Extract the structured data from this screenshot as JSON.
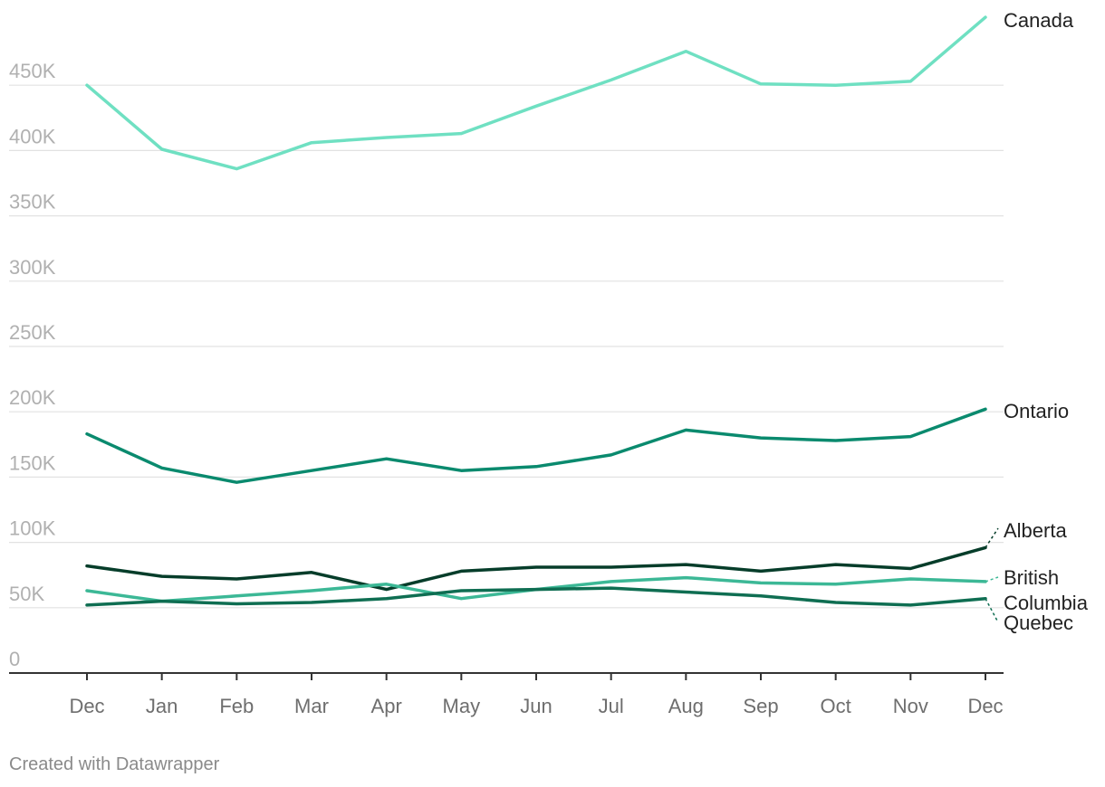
{
  "chart_data": {
    "type": "line",
    "title": "",
    "xlabel": "",
    "ylabel": "",
    "categories": [
      "Dec",
      "Jan",
      "Feb",
      "Mar",
      "Apr",
      "May",
      "Jun",
      "Jul",
      "Aug",
      "Sep",
      "Oct",
      "Nov",
      "Dec"
    ],
    "ylim": [
      0,
      500000
    ],
    "y_ticks": [
      0,
      50000,
      100000,
      150000,
      200000,
      250000,
      300000,
      350000,
      400000,
      450000
    ],
    "y_tick_labels": [
      "0",
      "50K",
      "100K",
      "150K",
      "200K",
      "250K",
      "300K",
      "350K",
      "400K",
      "450K"
    ],
    "grid": true,
    "series": [
      {
        "name": "Canada",
        "label_lines": [
          "Canada"
        ],
        "color": "#6fe0c2",
        "values": [
          450000,
          401000,
          386000,
          406000,
          410000,
          413000,
          434000,
          454000,
          476000,
          451000,
          450000,
          453000,
          502000
        ]
      },
      {
        "name": "Ontario",
        "label_lines": [
          "Ontario"
        ],
        "color": "#0a8a6e",
        "values": [
          183000,
          157000,
          146000,
          155000,
          164000,
          155000,
          158000,
          167000,
          186000,
          180000,
          178000,
          181000,
          202000
        ]
      },
      {
        "name": "Alberta",
        "label_lines": [
          "Alberta"
        ],
        "color": "#063d2a",
        "values": [
          82000,
          74000,
          72000,
          77000,
          64000,
          78000,
          81000,
          81000,
          83000,
          78000,
          83000,
          80000,
          96000
        ]
      },
      {
        "name": "British Columbia",
        "label_lines": [
          "British",
          "Columbia"
        ],
        "color": "#3cb896",
        "values": [
          63000,
          55000,
          59000,
          63000,
          68000,
          57000,
          64000,
          70000,
          73000,
          69000,
          68000,
          72000,
          70000
        ]
      },
      {
        "name": "Quebec",
        "label_lines": [
          "Quebec"
        ],
        "color": "#0f6e52",
        "values": [
          52000,
          55000,
          53000,
          54000,
          57000,
          63000,
          64000,
          65000,
          62000,
          59000,
          54000,
          52000,
          57000
        ]
      }
    ]
  },
  "footer": {
    "credit": "Created with Datawrapper"
  }
}
